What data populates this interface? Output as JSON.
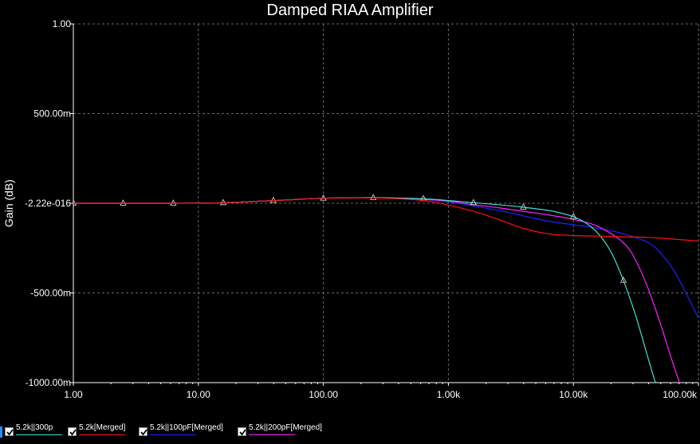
{
  "chart_data": {
    "type": "line",
    "title": "Damped RIAA Amplifier",
    "xlabel": "",
    "ylabel": "Gain (dB)",
    "x_scale": "log",
    "xlim": [
      1,
      100000
    ],
    "ylim": [
      -1,
      1
    ],
    "x_ticks": [
      {
        "value": 1,
        "label": "1.00"
      },
      {
        "value": 10,
        "label": "10.00"
      },
      {
        "value": 100,
        "label": "100.00"
      },
      {
        "value": 1000,
        "label": "1.00k"
      },
      {
        "value": 10000,
        "label": "10.00k"
      },
      {
        "value": 100000,
        "label": "100.00k"
      }
    ],
    "y_ticks": [
      {
        "value": 1,
        "label": "1.00"
      },
      {
        "value": 0.5,
        "label": "500.00m"
      },
      {
        "value": 0,
        "label": "-2.22e-016"
      },
      {
        "value": -0.5,
        "label": "-500.00m"
      },
      {
        "value": -1,
        "label": "-1000.00m"
      }
    ],
    "grid": true,
    "legend_position": "bottom",
    "series": [
      {
        "name": "5.2k||300p",
        "color": "#40e0d0",
        "markers": true,
        "x": [
          1,
          2.5,
          6.3,
          15.8,
          39.8,
          100,
          251,
          631,
          1000,
          1585,
          2512,
          3981,
          6310,
          8000,
          10000,
          12589,
          15849,
          19953,
          25119,
          31623,
          39811,
          50119,
          56000,
          63096
        ],
        "y": [
          0.0,
          0.0,
          0.0,
          0.003,
          0.015,
          0.028,
          0.031,
          0.025,
          0.015,
          0.003,
          -0.008,
          -0.022,
          -0.04,
          -0.055,
          -0.075,
          -0.11,
          -0.17,
          -0.27,
          -0.43,
          -0.63,
          -0.87,
          -1.1,
          -1.2,
          -1.3
        ]
      },
      {
        "name": "5.2k[Merged]",
        "color": "#ff1010",
        "markers": false,
        "x": [
          1,
          2.5,
          6.3,
          15.8,
          39.8,
          100,
          251,
          631,
          1000,
          1585,
          2512,
          3981,
          6310,
          10000,
          15849,
          25119,
          39811,
          63096,
          100000
        ],
        "y": [
          0.0,
          0.0,
          0.0,
          0.003,
          0.015,
          0.028,
          0.03,
          0.015,
          -0.01,
          -0.045,
          -0.09,
          -0.14,
          -0.17,
          -0.18,
          -0.183,
          -0.187,
          -0.19,
          -0.2,
          -0.21
        ]
      },
      {
        "name": "5.2k||100pF[Merged]",
        "color": "#2020ff",
        "markers": false,
        "x": [
          1,
          2.5,
          6.3,
          15.8,
          39.8,
          100,
          251,
          631,
          1000,
          1585,
          2512,
          3981,
          6310,
          10000,
          15849,
          25119,
          39811,
          50119,
          63096,
          79433,
          100000
        ],
        "y": [
          0.0,
          0.0,
          0.0,
          0.003,
          0.015,
          0.028,
          0.031,
          0.022,
          0.008,
          -0.015,
          -0.04,
          -0.07,
          -0.1,
          -0.12,
          -0.14,
          -0.17,
          -0.22,
          -0.28,
          -0.37,
          -0.5,
          -0.64
        ]
      },
      {
        "name": "5.2k||200pF[Merged]",
        "color": "#ff20ff",
        "markers": false,
        "x": [
          1,
          2.5,
          6.3,
          15.8,
          39.8,
          100,
          251,
          631,
          1000,
          1585,
          2512,
          3981,
          6310,
          10000,
          15849,
          25119,
          31623,
          39811,
          50119,
          63096,
          79433,
          90000
        ],
        "y": [
          0.0,
          0.0,
          0.0,
          0.003,
          0.015,
          0.028,
          0.031,
          0.022,
          0.012,
          -0.008,
          -0.025,
          -0.045,
          -0.065,
          -0.09,
          -0.13,
          -0.22,
          -0.32,
          -0.48,
          -0.68,
          -0.9,
          -1.1,
          -1.2
        ]
      }
    ]
  },
  "legend": [
    {
      "label": "5.2k||300p",
      "color": "#40e0d0",
      "checked": true
    },
    {
      "label": "5.2k[Merged]",
      "color": "#ff1010",
      "checked": true
    },
    {
      "label": "5.2k||100pF[Merged]",
      "color": "#2020ff",
      "checked": true
    },
    {
      "label": "5.2k||200pF[Merged]",
      "color": "#ff20ff",
      "checked": true
    }
  ]
}
